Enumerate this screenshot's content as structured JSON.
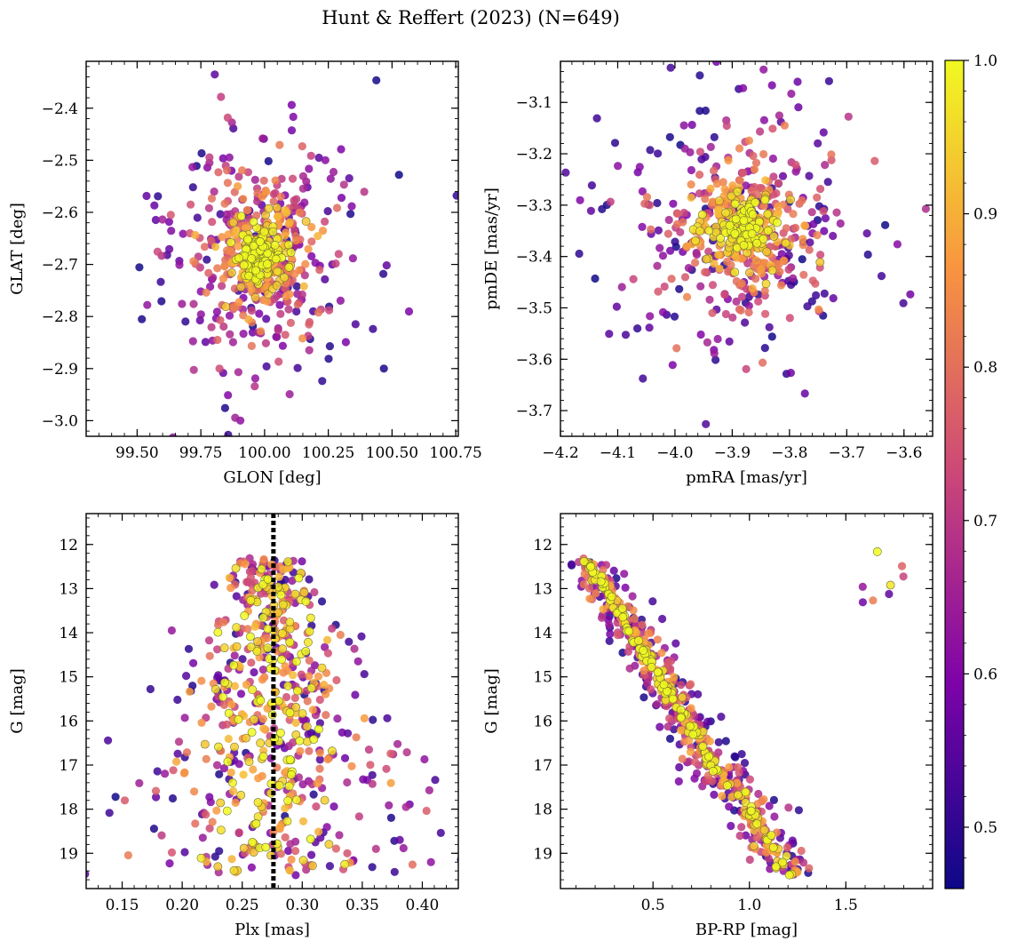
{
  "figure": {
    "title": "Hunt & Reffert (2023) (N=649)"
  },
  "colorbar": {
    "min": 0.46,
    "max": 1.0,
    "ticks": [
      0.5,
      0.6,
      0.7,
      0.8,
      0.9,
      1.0
    ],
    "tick_labels": [
      "0.5",
      "0.6",
      "0.7",
      "0.8",
      "0.9",
      "1.0"
    ],
    "colormap": "plasma"
  },
  "chart_data": [
    {
      "type": "scatter",
      "id": "glon-glat",
      "xlabel": "GLON [deg]",
      "ylabel": "GLAT [deg]",
      "xlim": [
        99.3,
        100.76
      ],
      "ylim": [
        -3.03,
        -2.31
      ],
      "y_inverted": false,
      "xticks": [
        99.5,
        99.75,
        100.0,
        100.25,
        100.5,
        100.75
      ],
      "xtick_labels": [
        "99.50",
        "99.75",
        "100.00",
        "100.25",
        "100.50",
        "100.75"
      ],
      "yticks": [
        -3.0,
        -2.9,
        -2.8,
        -2.7,
        -2.6,
        -2.5,
        -2.4
      ],
      "ytick_labels": [
        "−3.0",
        "−2.9",
        "−2.8",
        "−2.7",
        "−2.6",
        "−2.5",
        "−2.4"
      ],
      "center": [
        99.98,
        -2.68
      ],
      "spread": [
        0.16,
        0.1
      ],
      "seed": 11,
      "n_points": 649
    },
    {
      "type": "scatter",
      "id": "pmra-pmde",
      "xlabel": "pmRA [mas/yr]",
      "ylabel": "pmDE [mas/yr]",
      "xlim": [
        -4.2,
        -3.55
      ],
      "ylim": [
        -3.75,
        -3.02
      ],
      "y_inverted": false,
      "xticks": [
        -4.2,
        -4.1,
        -4.0,
        -3.9,
        -3.8,
        -3.7,
        -3.6
      ],
      "xtick_labels": [
        "−4.2",
        "−4.1",
        "−4.0",
        "−3.9",
        "−3.8",
        "−3.7",
        "−3.6"
      ],
      "yticks": [
        -3.7,
        -3.6,
        -3.5,
        -3.4,
        -3.3,
        -3.2,
        -3.1
      ],
      "ytick_labels": [
        "−3.7",
        "−3.6",
        "−3.5",
        "−3.4",
        "−3.3",
        "−3.2",
        "−3.1"
      ],
      "center": [
        -3.88,
        -3.35
      ],
      "spread": [
        0.09,
        0.1
      ],
      "seed": 23,
      "n_points": 649
    },
    {
      "type": "scatter",
      "id": "plx-g",
      "xlabel": "Plx [mas]",
      "ylabel": "G [mag]",
      "xlim": [
        0.12,
        0.43
      ],
      "ylim": [
        11.3,
        19.8
      ],
      "y_inverted": true,
      "xticks": [
        0.15,
        0.2,
        0.25,
        0.3,
        0.35,
        0.4
      ],
      "xtick_labels": [
        "0.15",
        "0.20",
        "0.25",
        "0.30",
        "0.35",
        "0.40"
      ],
      "yticks": [
        12,
        13,
        14,
        15,
        16,
        17,
        18,
        19
      ],
      "ytick_labels": [
        "12",
        "13",
        "14",
        "15",
        "16",
        "17",
        "18",
        "19"
      ],
      "vline_plx": 0.276,
      "seed": 37,
      "n_points": 649
    },
    {
      "type": "scatter",
      "id": "bprp-g",
      "xlabel": "BP-RP [mag]",
      "ylabel": "G [mag]",
      "xlim": [
        0.02,
        1.95
      ],
      "ylim": [
        11.3,
        19.8
      ],
      "y_inverted": true,
      "xticks": [
        0.5,
        1.0,
        1.5
      ],
      "xtick_labels": [
        "0.5",
        "1.0",
        "1.5"
      ],
      "yticks": [
        12,
        13,
        14,
        15,
        16,
        17,
        18,
        19
      ],
      "ytick_labels": [
        "12",
        "13",
        "14",
        "15",
        "16",
        "17",
        "18",
        "19"
      ],
      "seed": 53,
      "n_points": 649
    }
  ]
}
